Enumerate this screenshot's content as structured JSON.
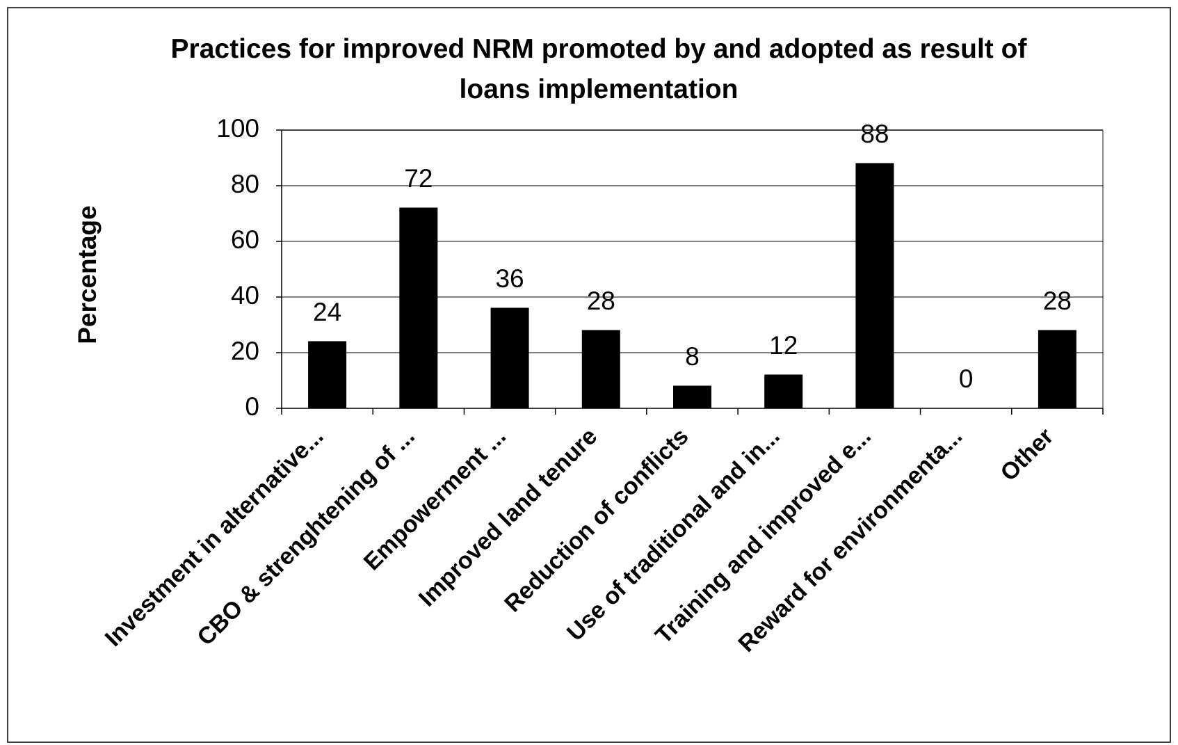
{
  "chart_data": {
    "type": "bar",
    "title": "Practices for improved NRM promoted by and adopted as result of loans implementation",
    "y_axis_label": "Percentage",
    "categories": [
      "Investment in alternative...",
      "CBO & strenghtening of ...",
      "Empowerment ...",
      "Improved land tenure",
      "Reduction of conflicts",
      "Use of traditional and in...",
      "Training and improved e...",
      "Reward for environmenta...",
      "Other"
    ],
    "values": [
      24,
      72,
      36,
      28,
      8,
      12,
      88,
      0,
      28
    ],
    "color": "#000000",
    "ylim": [
      0,
      100
    ],
    "yticks": [
      0,
      20,
      40,
      60,
      80,
      100
    ],
    "grid": true
  }
}
